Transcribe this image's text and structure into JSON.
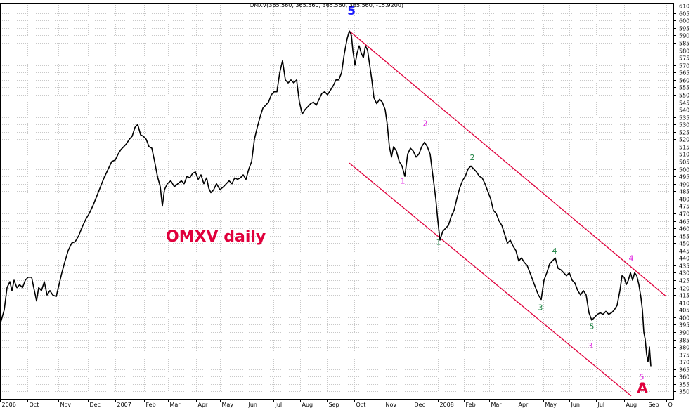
{
  "chart_data": {
    "type": "line",
    "header": "OMXV(365.560, 365.560, 365.560, 365.560, -15.9200)",
    "title": "OMXV daily",
    "xlabel": "",
    "ylabel": "",
    "ylim": [
      345,
      612
    ],
    "y_ticks": [
      350,
      355,
      360,
      365,
      370,
      375,
      380,
      385,
      390,
      395,
      400,
      405,
      410,
      415,
      420,
      425,
      430,
      435,
      440,
      445,
      450,
      455,
      460,
      465,
      470,
      475,
      480,
      485,
      490,
      495,
      500,
      505,
      510,
      515,
      520,
      525,
      530,
      535,
      540,
      545,
      550,
      555,
      560,
      565,
      570,
      575,
      580,
      585,
      590,
      595,
      600,
      605,
      610
    ],
    "x_ticks": [
      "2006",
      "Oct",
      "Nov",
      "Dec",
      "2007",
      "Feb",
      "Mar",
      "Apr",
      "May",
      "Jun",
      "Jul",
      "Aug",
      "Sep",
      "Oct",
      "Nov",
      "Dec",
      "2008",
      "Feb",
      "Mar",
      "Apr",
      "May",
      "Jun",
      "Jul",
      "Aug",
      "Sep",
      "O"
    ],
    "x_tick_index": [
      0,
      39,
      83,
      125,
      164,
      205,
      239,
      279,
      313,
      351,
      389,
      427,
      465,
      504,
      546,
      587,
      623,
      660,
      696,
      735,
      773,
      810,
      848,
      888,
      920,
      948
    ],
    "grid": true,
    "series": [
      {
        "color": "#000000",
        "points": [
          [
            0,
            395
          ],
          [
            6,
            405
          ],
          [
            10,
            420
          ],
          [
            14,
            424
          ],
          [
            17,
            418
          ],
          [
            20,
            425
          ],
          [
            24,
            420
          ],
          [
            28,
            422
          ],
          [
            32,
            420
          ],
          [
            36,
            425
          ],
          [
            40,
            427
          ],
          [
            45,
            427
          ],
          [
            48,
            420
          ],
          [
            52,
            411
          ],
          [
            55,
            420
          ],
          [
            59,
            418
          ],
          [
            63,
            424
          ],
          [
            67,
            415
          ],
          [
            71,
            418
          ],
          [
            75,
            415
          ],
          [
            80,
            414
          ],
          [
            84,
            422
          ],
          [
            88,
            430
          ],
          [
            92,
            437
          ],
          [
            97,
            445
          ],
          [
            102,
            450
          ],
          [
            107,
            451
          ],
          [
            112,
            455
          ],
          [
            117,
            461
          ],
          [
            122,
            466
          ],
          [
            127,
            470
          ],
          [
            132,
            475
          ],
          [
            138,
            482
          ],
          [
            143,
            488
          ],
          [
            148,
            494
          ],
          [
            154,
            500
          ],
          [
            159,
            505
          ],
          [
            164,
            506
          ],
          [
            168,
            510
          ],
          [
            172,
            513
          ],
          [
            176,
            515
          ],
          [
            180,
            517
          ],
          [
            184,
            520
          ],
          [
            188,
            522
          ],
          [
            192,
            528
          ],
          [
            196,
            530
          ],
          [
            200,
            523
          ],
          [
            204,
            522
          ],
          [
            208,
            520
          ],
          [
            212,
            515
          ],
          [
            216,
            514
          ],
          [
            220,
            505
          ],
          [
            224,
            495
          ],
          [
            228,
            488
          ],
          [
            231,
            475
          ],
          [
            234,
            486
          ],
          [
            238,
            490
          ],
          [
            243,
            492
          ],
          [
            248,
            488
          ],
          [
            253,
            490
          ],
          [
            258,
            492
          ],
          [
            262,
            490
          ],
          [
            266,
            495
          ],
          [
            270,
            494
          ],
          [
            274,
            497
          ],
          [
            278,
            498
          ],
          [
            282,
            493
          ],
          [
            286,
            496
          ],
          [
            290,
            490
          ],
          [
            294,
            494
          ],
          [
            297,
            487
          ],
          [
            300,
            484
          ],
          [
            304,
            486
          ],
          [
            308,
            490
          ],
          [
            313,
            486
          ],
          [
            318,
            488
          ],
          [
            322,
            490
          ],
          [
            326,
            492
          ],
          [
            330,
            490
          ],
          [
            334,
            494
          ],
          [
            338,
            493
          ],
          [
            342,
            494
          ],
          [
            346,
            496
          ],
          [
            350,
            493
          ],
          [
            354,
            500
          ],
          [
            358,
            505
          ],
          [
            362,
            520
          ],
          [
            366,
            528
          ],
          [
            370,
            535
          ],
          [
            374,
            541
          ],
          [
            378,
            543
          ],
          [
            382,
            545
          ],
          [
            386,
            550
          ],
          [
            390,
            552
          ],
          [
            394,
            552
          ],
          [
            398,
            565
          ],
          [
            402,
            573
          ],
          [
            406,
            560
          ],
          [
            410,
            558
          ],
          [
            414,
            560
          ],
          [
            418,
            558
          ],
          [
            422,
            560
          ],
          [
            426,
            545
          ],
          [
            430,
            537
          ],
          [
            434,
            540
          ],
          [
            438,
            542
          ],
          [
            442,
            544
          ],
          [
            446,
            545
          ],
          [
            450,
            543
          ],
          [
            454,
            547
          ],
          [
            458,
            551
          ],
          [
            462,
            552
          ],
          [
            466,
            550
          ],
          [
            470,
            553
          ],
          [
            474,
            556
          ],
          [
            478,
            560
          ],
          [
            482,
            560
          ],
          [
            486,
            565
          ],
          [
            490,
            578
          ],
          [
            494,
            588
          ],
          [
            497,
            593
          ],
          [
            500,
            590
          ],
          [
            502,
            580
          ],
          [
            505,
            570
          ],
          [
            508,
            578
          ],
          [
            511,
            583
          ],
          [
            514,
            578
          ],
          [
            517,
            575
          ],
          [
            520,
            583
          ],
          [
            523,
            580
          ],
          [
            526,
            570
          ],
          [
            529,
            560
          ],
          [
            532,
            548
          ],
          [
            536,
            544
          ],
          [
            540,
            547
          ],
          [
            544,
            545
          ],
          [
            548,
            540
          ],
          [
            551,
            530
          ],
          [
            554,
            515
          ],
          [
            557,
            508
          ],
          [
            560,
            515
          ],
          [
            564,
            512
          ],
          [
            568,
            505
          ],
          [
            572,
            502
          ],
          [
            576,
            495
          ],
          [
            580,
            510
          ],
          [
            584,
            514
          ],
          [
            588,
            512
          ],
          [
            592,
            508
          ],
          [
            596,
            510
          ],
          [
            600,
            515
          ],
          [
            604,
            518
          ],
          [
            608,
            515
          ],
          [
            612,
            510
          ],
          [
            616,
            495
          ],
          [
            620,
            480
          ],
          [
            623,
            465
          ],
          [
            626,
            452
          ],
          [
            630,
            458
          ],
          [
            634,
            460
          ],
          [
            638,
            462
          ],
          [
            642,
            468
          ],
          [
            646,
            472
          ],
          [
            650,
            480
          ],
          [
            654,
            487
          ],
          [
            658,
            492
          ],
          [
            662,
            495
          ],
          [
            666,
            500
          ],
          [
            670,
            502
          ],
          [
            674,
            500
          ],
          [
            678,
            498
          ],
          [
            682,
            495
          ],
          [
            686,
            494
          ],
          [
            690,
            490
          ],
          [
            694,
            485
          ],
          [
            698,
            480
          ],
          [
            702,
            472
          ],
          [
            706,
            470
          ],
          [
            710,
            465
          ],
          [
            714,
            462
          ],
          [
            718,
            456
          ],
          [
            722,
            450
          ],
          [
            726,
            452
          ],
          [
            730,
            448
          ],
          [
            734,
            445
          ],
          [
            738,
            438
          ],
          [
            742,
            440
          ],
          [
            746,
            437
          ],
          [
            750,
            435
          ],
          [
            754,
            430
          ],
          [
            758,
            425
          ],
          [
            762,
            420
          ],
          [
            766,
            415
          ],
          [
            770,
            412
          ],
          [
            774,
            425
          ],
          [
            778,
            430
          ],
          [
            782,
            436
          ],
          [
            786,
            438
          ],
          [
            790,
            440
          ],
          [
            794,
            433
          ],
          [
            798,
            432
          ],
          [
            802,
            430
          ],
          [
            806,
            428
          ],
          [
            810,
            430
          ],
          [
            814,
            425
          ],
          [
            818,
            423
          ],
          [
            822,
            418
          ],
          [
            826,
            415
          ],
          [
            830,
            418
          ],
          [
            834,
            415
          ],
          [
            838,
            403
          ],
          [
            842,
            398
          ],
          [
            846,
            400
          ],
          [
            850,
            402
          ],
          [
            854,
            403
          ],
          [
            858,
            402
          ],
          [
            862,
            404
          ],
          [
            866,
            402
          ],
          [
            870,
            403
          ],
          [
            874,
            405
          ],
          [
            878,
            408
          ],
          [
            882,
            418
          ],
          [
            885,
            428
          ],
          [
            888,
            427
          ],
          [
            891,
            422
          ],
          [
            894,
            425
          ],
          [
            897,
            430
          ],
          [
            900,
            425
          ],
          [
            903,
            430
          ],
          [
            906,
            428
          ],
          [
            909,
            422
          ],
          [
            912,
            413
          ],
          [
            914,
            405
          ],
          [
            916,
            390
          ],
          [
            918,
            385
          ],
          [
            920,
            375
          ],
          [
            922,
            370
          ],
          [
            924,
            380
          ],
          [
            926,
            367
          ]
        ]
      }
    ],
    "channel": {
      "color": "#e0003c",
      "upper": [
        [
          497,
          593
        ],
        [
          948,
          414
        ]
      ],
      "lower": [
        [
          497,
          504
        ],
        [
          898,
          347
        ]
      ]
    },
    "wave_labels": [
      {
        "text": "5",
        "x": 500,
        "y": 604,
        "color": "#1a1aff",
        "size": 17,
        "bold": true
      },
      {
        "text": "1",
        "x": 573,
        "y": 490,
        "color": "#e020e0",
        "size": 11,
        "bold": false
      },
      {
        "text": "2",
        "x": 605,
        "y": 529,
        "color": "#e020e0",
        "size": 11,
        "bold": false
      },
      {
        "text": "1",
        "x": 624,
        "y": 449,
        "color": "#1a8040",
        "size": 11,
        "bold": false
      },
      {
        "text": "2",
        "x": 672,
        "y": 506,
        "color": "#1a8040",
        "size": 11,
        "bold": false
      },
      {
        "text": "3",
        "x": 769,
        "y": 405,
        "color": "#1a8040",
        "size": 11,
        "bold": false
      },
      {
        "text": "4",
        "x": 789,
        "y": 443,
        "color": "#1a8040",
        "size": 11,
        "bold": false
      },
      {
        "text": "5",
        "x": 842,
        "y": 392,
        "color": "#1a8040",
        "size": 11,
        "bold": false
      },
      {
        "text": "3",
        "x": 840,
        "y": 379,
        "color": "#e020e0",
        "size": 11,
        "bold": false
      },
      {
        "text": "4",
        "x": 898,
        "y": 438,
        "color": "#e020e0",
        "size": 11,
        "bold": false
      },
      {
        "text": "5",
        "x": 913,
        "y": 358,
        "color": "#e020e0",
        "size": 11,
        "bold": false
      },
      {
        "text": "A",
        "x": 914,
        "y": 349,
        "color": "#e0003c",
        "size": 20,
        "bold": true
      }
    ],
    "colors": {
      "background": "#ffffff",
      "line": "#000000",
      "title": "#e0003c",
      "grid": "#c8c8c8"
    }
  }
}
